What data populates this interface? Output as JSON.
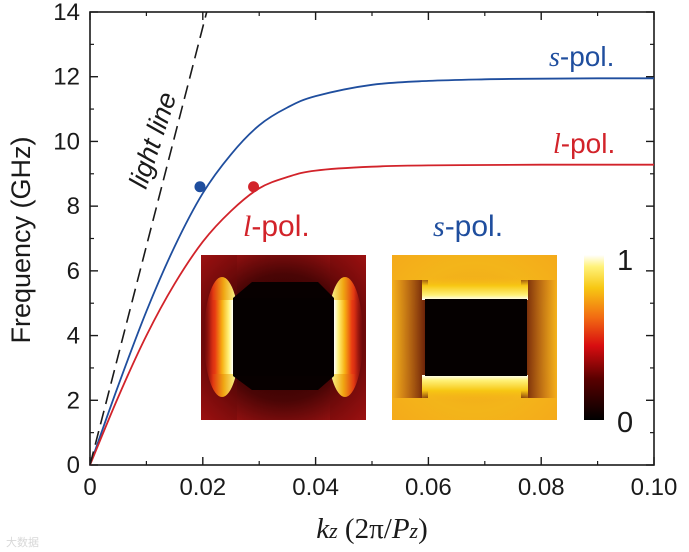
{
  "chart_data": {
    "type": "line",
    "xlim": [
      0,
      0.1
    ],
    "ylim": [
      0,
      14
    ],
    "x_ticks": [
      "0",
      "0.02",
      "0.04",
      "0.06",
      "0.08",
      "0.10"
    ],
    "y_ticks": [
      "0",
      "2",
      "4",
      "6",
      "8",
      "10",
      "12",
      "14"
    ],
    "xlabel": {
      "k": "k",
      "k_sub": "z",
      "paren_open": " (2",
      "pi": "π",
      "slash": "/",
      "p": "P",
      "p_sub": "z",
      "paren_close": ")"
    },
    "ylabel": "Frequency (GHz)",
    "series": [
      {
        "name": "s-pol.",
        "color": "#1f4e9e",
        "x": [
          0,
          0.005,
          0.01,
          0.015,
          0.02,
          0.025,
          0.03,
          0.035,
          0.04,
          0.05,
          0.06,
          0.07,
          0.08,
          0.09,
          0.1
        ],
        "y": [
          0,
          2.45,
          4.75,
          6.75,
          8.4,
          9.6,
          10.5,
          11.05,
          11.4,
          11.75,
          11.87,
          11.92,
          11.94,
          11.95,
          11.95
        ]
      },
      {
        "name": "l-pol.",
        "color": "#d2232a",
        "x": [
          0,
          0.005,
          0.01,
          0.015,
          0.02,
          0.025,
          0.03,
          0.035,
          0.04,
          0.05,
          0.06,
          0.07,
          0.08,
          0.09,
          0.1
        ],
        "y": [
          0,
          2.1,
          4.0,
          5.6,
          6.9,
          7.85,
          8.55,
          8.9,
          9.1,
          9.22,
          9.26,
          9.27,
          9.28,
          9.28,
          9.28
        ]
      },
      {
        "name": "light line",
        "color": "#1a1a1a",
        "dashed": true,
        "x": [
          0,
          0.0207
        ],
        "y": [
          0,
          14
        ]
      }
    ],
    "markers": [
      {
        "series": "s-pol.",
        "x": 0.0195,
        "y": 8.6,
        "color": "#1f4e9e"
      },
      {
        "series": "l-pol.",
        "x": 0.029,
        "y": 8.6,
        "color": "#d2232a"
      }
    ],
    "annotations": {
      "light_line": "light line",
      "s_pol_letter": "s",
      "l_pol_letter": "l",
      "pol_suffix": "-pol."
    },
    "insets": [
      {
        "label_letter": "l",
        "label_suffix": "-pol.",
        "label_color": "#d2232a",
        "mode": "l"
      },
      {
        "label_letter": "s",
        "label_suffix": "-pol.",
        "label_color": "#1f4e9e",
        "mode": "s"
      }
    ],
    "colorbar": {
      "max_label": "1",
      "min_label": "0",
      "range": [
        0,
        1
      ]
    },
    "grid": false,
    "legend": "none"
  },
  "watermark": "大数据"
}
